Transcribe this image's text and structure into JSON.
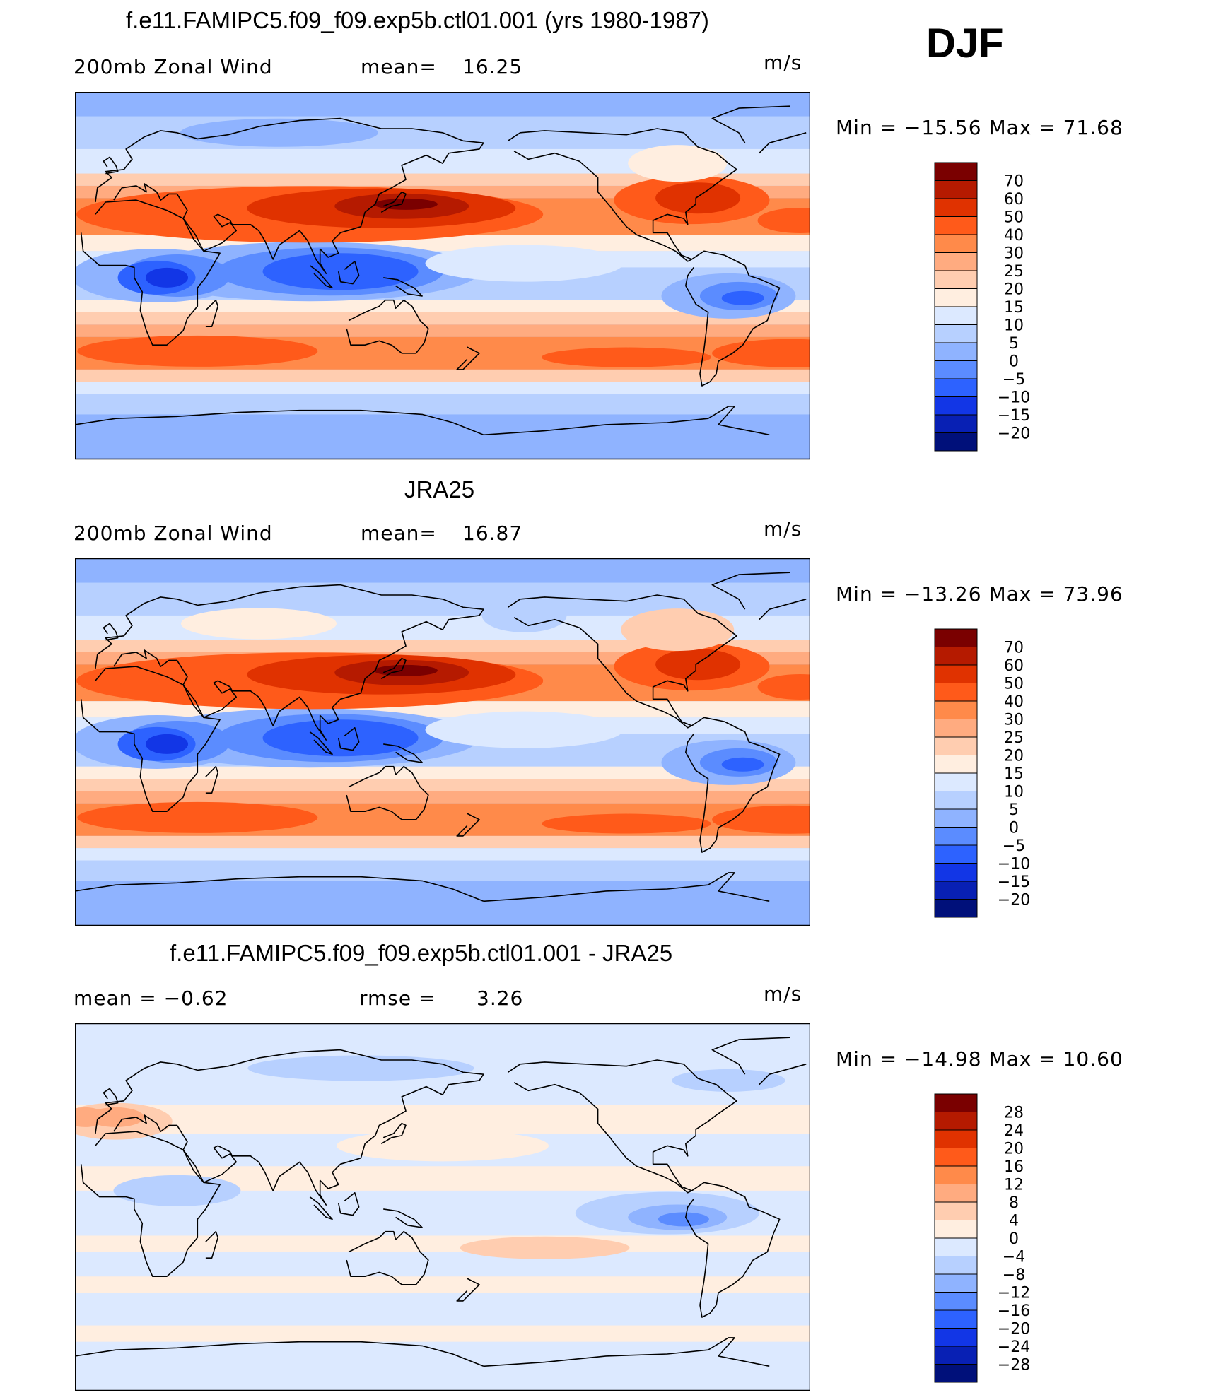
{
  "season": "DJF",
  "panels": [
    {
      "title": "f.e11.FAMIPC5.f09_f09.exp5b.ctl01.001 (yrs 1980-1987)",
      "left_label": "200mb Zonal Wind",
      "mid_label": "mean=",
      "mid_value": "16.25",
      "units": "m/s",
      "minmax_text": "Min  =  −15.56  Max  =     71.68"
    },
    {
      "title": "JRA25",
      "left_label": "200mb Zonal Wind",
      "mid_label": "mean=",
      "mid_value": "16.87",
      "units": "m/s",
      "minmax_text": "Min  =  −13.26  Max  =     73.96"
    },
    {
      "title": "f.e11.FAMIPC5.f09_f09.exp5b.ctl01.001 - JRA25",
      "left_label": "mean  =    −0.62",
      "mid_label": "rmse  =",
      "mid_value": "3.26",
      "units": "m/s",
      "minmax_text": "Min  =  −14.98  Max  =     10.60"
    }
  ],
  "colorbars": {
    "wind": {
      "labels": [
        "70",
        "60",
        "50",
        "40",
        "30",
        "25",
        "20",
        "15",
        "10",
        "5",
        "0",
        "−5",
        "−10",
        "−15",
        "−20"
      ],
      "colors": [
        "#7a0000",
        "#b51a00",
        "#e03200",
        "#ff5a1a",
        "#ff8a4a",
        "#ffab80",
        "#ffcdb0",
        "#ffeee0",
        "#dce9ff",
        "#b7d0ff",
        "#8fb3ff",
        "#5b8cff",
        "#2d62ff",
        "#1236e6",
        "#0820b4",
        "#00107a"
      ]
    },
    "diff": {
      "labels": [
        "28",
        "24",
        "20",
        "16",
        "12",
        "8",
        "4",
        "0",
        "−4",
        "−8",
        "−12",
        "−16",
        "−20",
        "−24",
        "−28"
      ],
      "colors": [
        "#7a0000",
        "#b51a00",
        "#e03200",
        "#ff5a1a",
        "#ff8a4a",
        "#ffab80",
        "#ffcdb0",
        "#ffeee0",
        "#dce9ff",
        "#b7d0ff",
        "#8fb3ff",
        "#5b8cff",
        "#2d62ff",
        "#1236e6",
        "#0820b4",
        "#00107a"
      ]
    }
  },
  "chart_data": {
    "type": "heatmap",
    "series": [
      {
        "name": "f.e11.FAMIPC5.f09_f09.exp5b.ctl01.001",
        "mean": 16.25,
        "min": -15.56,
        "max": 71.68
      },
      {
        "name": "JRA25",
        "mean": 16.87,
        "min": -13.26,
        "max": 73.96
      },
      {
        "name": "f.e11.FAMIPC5.f09_f09.exp5b.ctl01.001 - JRA25",
        "mean": -0.62,
        "rmse": 3.26,
        "min": -14.98,
        "max": 10.6
      }
    ],
    "legend": "right"
  }
}
